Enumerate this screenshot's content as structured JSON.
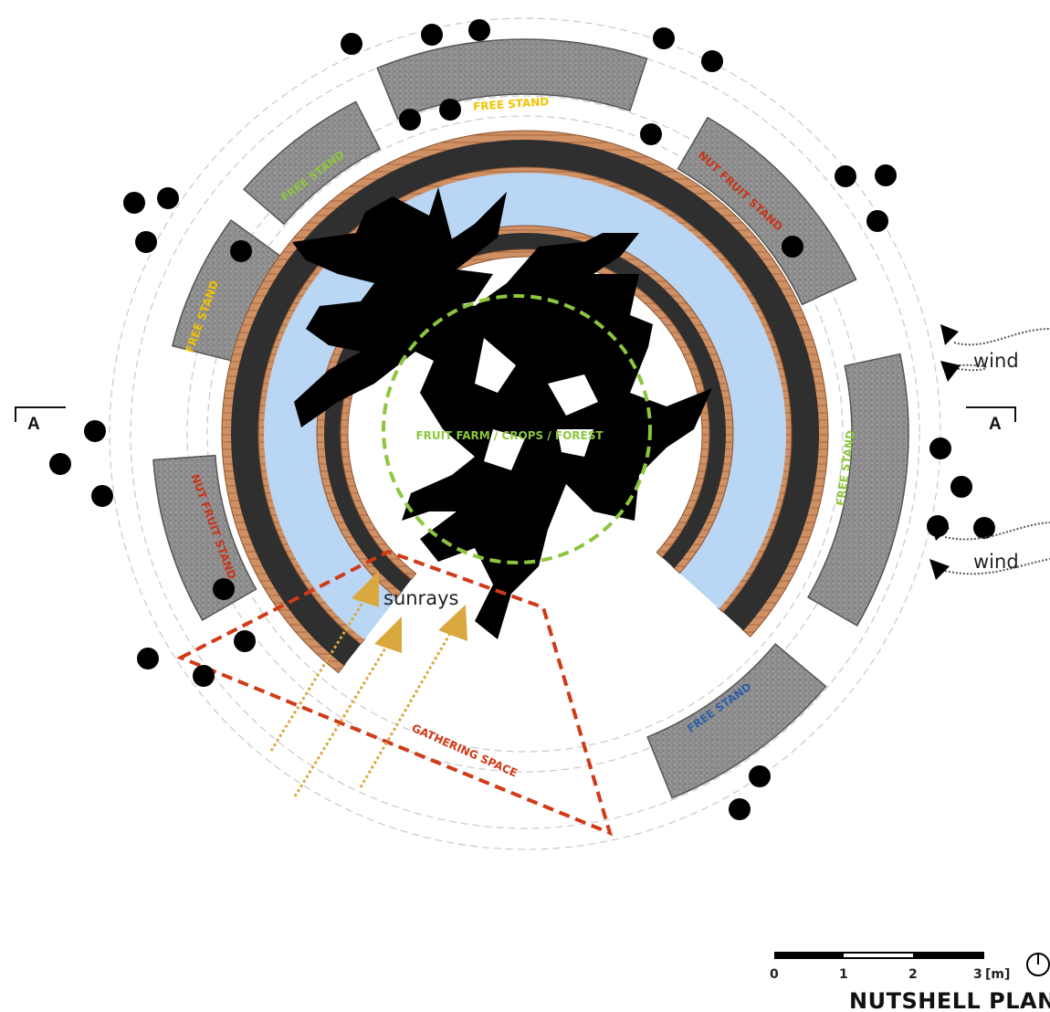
{
  "plan": {
    "title": "NUTSHELL PLAN",
    "scale_bar": {
      "ticks": [
        "0",
        "1",
        "2",
        "3"
      ],
      "unit": "[m]"
    },
    "section_marker": "A",
    "labels": {
      "free_stand_top": "FREE STAND",
      "free_stand_upper_left": "FREE STAND",
      "free_stand_left": "FREE STAND",
      "nut_fruit_stand_upper_right": "NUT FRUIT  STAND",
      "nut_fruit_stand_left": "NUT FRUIT  STAND",
      "free_stand_right": "FREE STAND",
      "free_stand_lower_right": "FREE STAND",
      "center": "FRUIT FARM / CROPS / FOREST",
      "gathering": "GATHERING SPACE",
      "sunrays": "sunrays",
      "wind_upper": "wind",
      "wind_lower": "wind"
    },
    "colors": {
      "free_stand_yellow": "#f2c200",
      "free_stand_green": "#8cc63f",
      "free_stand_blue": "#2e5fa8",
      "nut_stand_red": "#c8341a",
      "center_green": "#8cc63f",
      "gathering_red": "#d03a17",
      "sunray_gold": "#d9a940",
      "water_blue": "#b9d6f5",
      "wall_dark": "#333333",
      "wood_edge": "#c98a5b",
      "bench_gray": "#8f8f8f"
    }
  }
}
